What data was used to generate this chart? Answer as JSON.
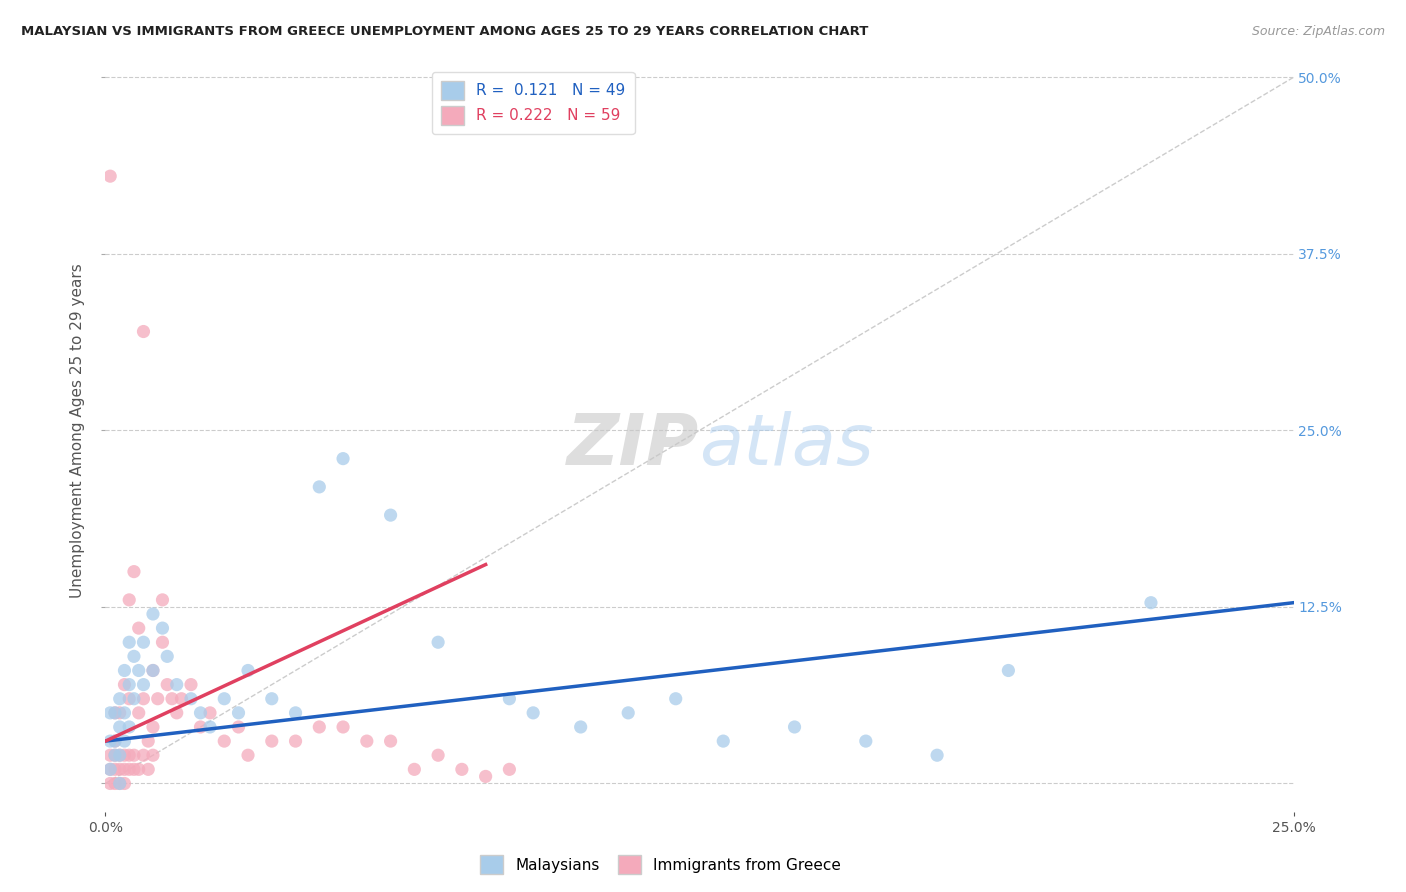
{
  "title": "MALAYSIAN VS IMMIGRANTS FROM GREECE UNEMPLOYMENT AMONG AGES 25 TO 29 YEARS CORRELATION CHART",
  "source": "Source: ZipAtlas.com",
  "ylabel": "Unemployment Among Ages 25 to 29 years",
  "xlim": [
    0.0,
    0.25
  ],
  "ylim": [
    -0.02,
    0.52
  ],
  "yticks": [
    0.0,
    0.125,
    0.25,
    0.375,
    0.5
  ],
  "ytick_labels_right": [
    "",
    "12.5%",
    "25.0%",
    "37.5%",
    "50.0%"
  ],
  "blue_R": 0.121,
  "blue_N": 49,
  "pink_R": 0.222,
  "pink_N": 59,
  "blue_color": "#A8CCEA",
  "pink_color": "#F4AABB",
  "blue_line_color": "#2060C0",
  "pink_line_color": "#E04060",
  "watermark_color": "#D0E4F8",
  "background_color": "#FFFFFF",
  "blue_line_x0": 0.0,
  "blue_line_y0": 0.03,
  "blue_line_x1": 0.25,
  "blue_line_y1": 0.128,
  "pink_line_x0": 0.0,
  "pink_line_y0": 0.03,
  "pink_line_x1": 0.08,
  "pink_line_y1": 0.155,
  "blue_scatter_x": [
    0.001,
    0.001,
    0.001,
    0.002,
    0.002,
    0.002,
    0.003,
    0.003,
    0.003,
    0.003,
    0.004,
    0.004,
    0.004,
    0.005,
    0.005,
    0.005,
    0.006,
    0.006,
    0.007,
    0.008,
    0.008,
    0.01,
    0.01,
    0.012,
    0.013,
    0.015,
    0.018,
    0.02,
    0.022,
    0.025,
    0.028,
    0.03,
    0.035,
    0.04,
    0.045,
    0.05,
    0.06,
    0.07,
    0.085,
    0.09,
    0.1,
    0.11,
    0.12,
    0.13,
    0.145,
    0.16,
    0.175,
    0.19,
    0.22
  ],
  "blue_scatter_y": [
    0.05,
    0.03,
    0.01,
    0.05,
    0.03,
    0.02,
    0.06,
    0.04,
    0.02,
    0.0,
    0.08,
    0.05,
    0.03,
    0.1,
    0.07,
    0.04,
    0.09,
    0.06,
    0.08,
    0.1,
    0.07,
    0.12,
    0.08,
    0.11,
    0.09,
    0.07,
    0.06,
    0.05,
    0.04,
    0.06,
    0.05,
    0.08,
    0.06,
    0.05,
    0.21,
    0.23,
    0.19,
    0.1,
    0.06,
    0.05,
    0.04,
    0.05,
    0.06,
    0.03,
    0.04,
    0.03,
    0.02,
    0.08,
    0.128
  ],
  "pink_scatter_x": [
    0.001,
    0.001,
    0.001,
    0.001,
    0.002,
    0.002,
    0.002,
    0.002,
    0.002,
    0.003,
    0.003,
    0.003,
    0.003,
    0.004,
    0.004,
    0.004,
    0.004,
    0.005,
    0.005,
    0.005,
    0.005,
    0.006,
    0.006,
    0.006,
    0.007,
    0.007,
    0.007,
    0.008,
    0.008,
    0.008,
    0.009,
    0.009,
    0.01,
    0.01,
    0.01,
    0.011,
    0.012,
    0.012,
    0.013,
    0.014,
    0.015,
    0.016,
    0.018,
    0.02,
    0.022,
    0.025,
    0.028,
    0.03,
    0.035,
    0.04,
    0.045,
    0.05,
    0.055,
    0.06,
    0.065,
    0.07,
    0.075,
    0.08,
    0.085
  ],
  "pink_scatter_y": [
    0.0,
    0.01,
    0.02,
    0.43,
    0.0,
    0.01,
    0.02,
    0.03,
    0.05,
    0.0,
    0.01,
    0.02,
    0.05,
    0.0,
    0.01,
    0.02,
    0.07,
    0.01,
    0.02,
    0.06,
    0.13,
    0.01,
    0.02,
    0.15,
    0.01,
    0.05,
    0.11,
    0.02,
    0.06,
    0.32,
    0.01,
    0.03,
    0.02,
    0.04,
    0.08,
    0.06,
    0.1,
    0.13,
    0.07,
    0.06,
    0.05,
    0.06,
    0.07,
    0.04,
    0.05,
    0.03,
    0.04,
    0.02,
    0.03,
    0.03,
    0.04,
    0.04,
    0.03,
    0.03,
    0.01,
    0.02,
    0.01,
    0.005,
    0.01
  ]
}
